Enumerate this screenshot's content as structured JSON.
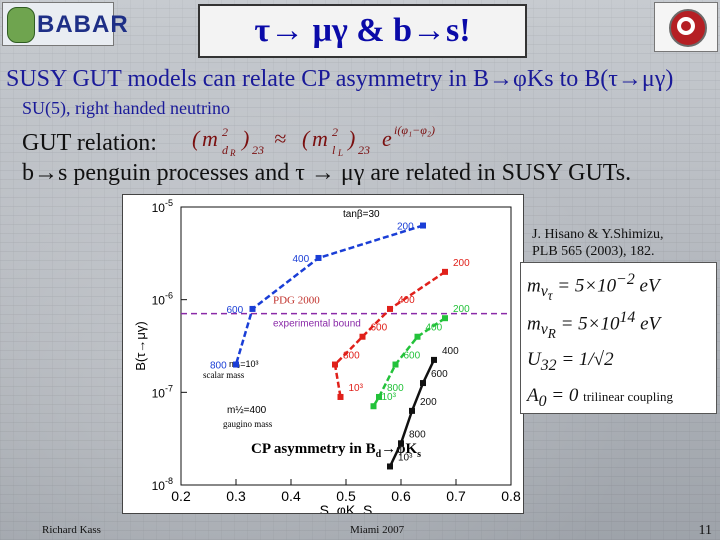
{
  "slide": {
    "title": "τ→ μγ & b→s!",
    "line1": "SUSY GUT models can relate CP asymmetry in B→φKs to B(τ→μγ)",
    "line2": "SU(5), right handed neutrino",
    "line3_label": "GUT relation:",
    "line4": "b→s penguin processes and τ → μγ are related in SUSY GUTs.",
    "citation": [
      "J. Hisano & Y.Shimizu,",
      "PLB 565 (2003), 182."
    ],
    "footer_author": "Richard Kass",
    "footer_event": "Miami 2007",
    "slide_number": "11",
    "logo_left_text": "BABAR",
    "formula_labels": {
      "gut": "(m²_dR)₂₃ ≈ (m²_lL)₂₃ e^{i(φ₁-φ₂)}",
      "mnu": "m_{ν_τ} = 5×10⁻² eV",
      "mnuR": "m_{ν_R} = 5×10¹⁴ eV",
      "u32": "U₃₂ = 1/√2",
      "a0": "A₀ = 0",
      "a0_note": "trilinear coupling"
    }
  },
  "chart_data": {
    "type": "line",
    "xlabel": "S_φK_S",
    "ylabel": "B(τ→μγ)",
    "xlim": [
      0.2,
      0.8
    ],
    "ylim_log10": [
      -8,
      -5
    ],
    "x_ticks": [
      "0.2",
      "0.3",
      "0.4",
      "0.5",
      "0.6",
      "0.7",
      "0.8"
    ],
    "y_ticks": [
      "10^-8",
      "10^-7",
      "10^-6",
      "10^-5"
    ],
    "annotations": {
      "tanb": "tanβ=30",
      "pdg": "PDG 2000",
      "exp_bound": "experimental bound",
      "scalar_mass": "scalar mass",
      "m0": "m₀=10³",
      "gaugino_mass": "gaugino mass",
      "m12": "m½=400",
      "cp_asym": "CP asymmetry in B",
      "cp_sub": "d",
      "cp_tail": "→φK",
      "cp_s": "s"
    },
    "bound": -6.15,
    "series": [
      {
        "color": "#1a3ed6",
        "points": [
          [
            0.64,
            -5.2
          ],
          [
            0.45,
            -5.55
          ],
          [
            0.33,
            -6.1
          ],
          [
            0.3,
            -6.7
          ]
        ],
        "labels": [
          "200",
          "400",
          "600",
          "800"
        ]
      },
      {
        "color": "#e0201a",
        "points": [
          [
            0.68,
            -5.7
          ],
          [
            0.58,
            -6.1
          ],
          [
            0.53,
            -6.4
          ],
          [
            0.48,
            -6.7
          ],
          [
            0.49,
            -7.05
          ]
        ],
        "labels": [
          "200",
          "400",
          "600",
          "800",
          "10³"
        ]
      },
      {
        "color": "#23c23a",
        "points": [
          [
            0.68,
            -6.2
          ],
          [
            0.63,
            -6.4
          ],
          [
            0.59,
            -6.7
          ],
          [
            0.56,
            -7.05
          ],
          [
            0.55,
            -7.15
          ]
        ],
        "labels": [
          "200",
          "400",
          "600",
          "800",
          "10³"
        ]
      },
      {
        "color": "#111111",
        "points": [
          [
            0.66,
            -6.65
          ],
          [
            0.64,
            -6.9
          ],
          [
            0.62,
            -7.2
          ],
          [
            0.6,
            -7.55
          ],
          [
            0.58,
            -7.8
          ]
        ],
        "labels": [
          "400",
          "600",
          "200",
          "800",
          "10³"
        ]
      }
    ]
  }
}
